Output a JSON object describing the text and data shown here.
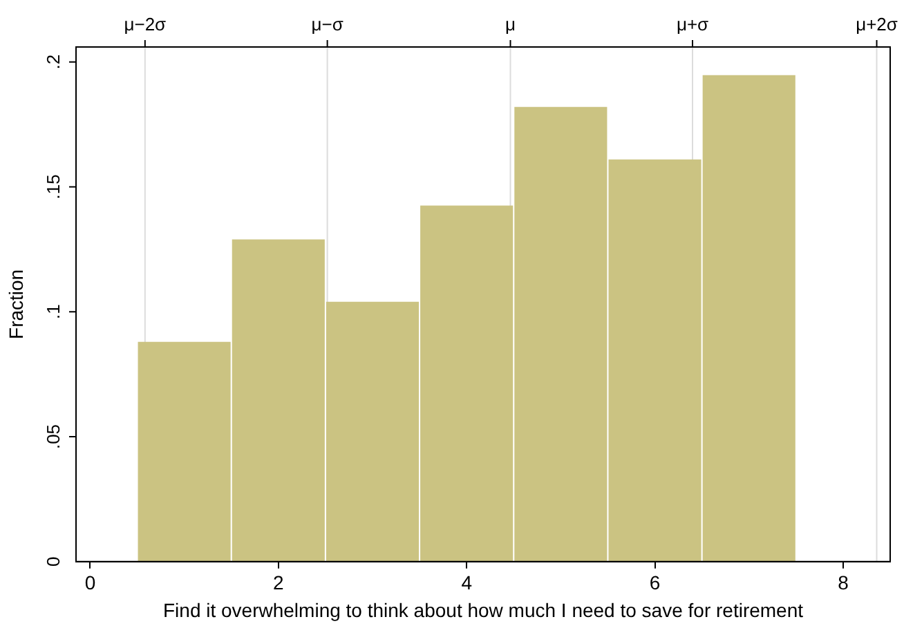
{
  "chart_data": {
    "type": "histogram",
    "xlabel": "Find it overwhelming to think about how much I need to save for retirement",
    "ylabel": "Fraction",
    "bins": [
      0.5,
      1.5,
      2.5,
      3.5,
      4.5,
      5.5,
      6.5,
      7.5
    ],
    "values": [
      0.088,
      0.129,
      0.104,
      0.1425,
      0.182,
      0.161,
      0.1947
    ],
    "color": "#cbc382",
    "xlim": [
      -0.15,
      8.5
    ],
    "xticks": [
      0,
      2,
      4,
      6,
      8
    ],
    "ylim": [
      0,
      0.206
    ],
    "yticks": [
      0,
      {
        "value": 0.05,
        "label": ".05"
      },
      {
        "value": 0.1,
        "label": ".1"
      },
      {
        "value": 0.15,
        "label": ".15"
      },
      {
        "value": 0.2,
        "label": ".2"
      }
    ],
    "ref_lines": [
      {
        "axis": "x",
        "value": 0.583,
        "label": "μ−2σ",
        "color": "#dcdcdc"
      },
      {
        "axis": "x",
        "value": 2.52,
        "label": "μ−σ",
        "color": "#dcdcdc"
      },
      {
        "axis": "x",
        "value": 4.465,
        "label": "μ",
        "color": "#dcdcdc"
      },
      {
        "axis": "x",
        "value": 6.4,
        "label": "μ+σ",
        "color": "#dcdcdc"
      },
      {
        "axis": "x",
        "value": 8.357,
        "label": "μ+2σ",
        "color": "#dcdcdc"
      }
    ]
  }
}
